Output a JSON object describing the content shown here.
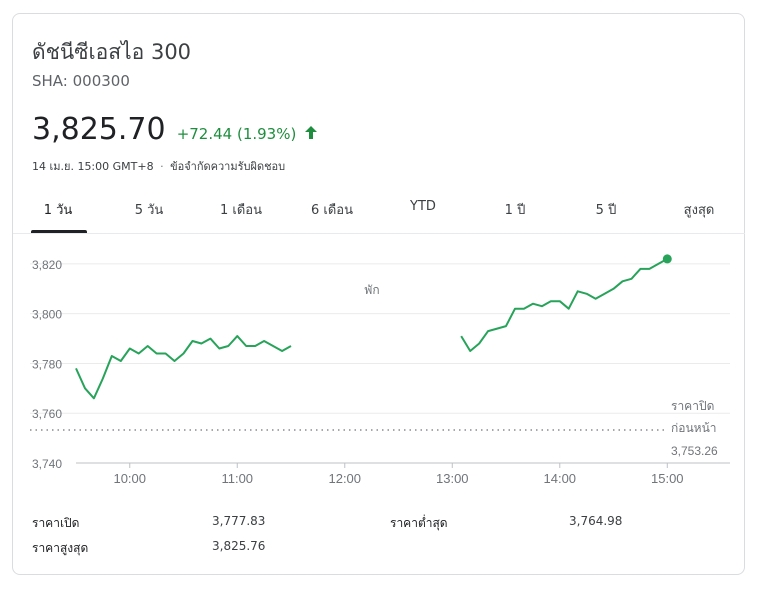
{
  "header": {
    "title": "ดัชนีซีเอสไอ 300",
    "ticker": "SHA: 000300",
    "price": "3,825.70",
    "change": "+72.44 (1.93%)",
    "arrow_icon": "arrow-up-icon",
    "timestamp": "14 เม.ย. 15:00 GMT+8",
    "separator": "·",
    "disclaimer": "ข้อจำกัดความรับผิดชอบ"
  },
  "tabs": [
    {
      "label": "1 วัน",
      "active": true
    },
    {
      "label": "5 วัน",
      "active": false
    },
    {
      "label": "1 เดือน",
      "active": false
    },
    {
      "label": "6 เดือน",
      "active": false
    },
    {
      "label": "YTD",
      "active": false
    },
    {
      "label": "1 ปี",
      "active": false
    },
    {
      "label": "5 ปี",
      "active": false
    },
    {
      "label": "สูงสุด",
      "active": false
    }
  ],
  "colors": {
    "accent_green": "#1e8e3e",
    "line_green": "#27a35a",
    "grid": "#ebebeb",
    "text": "#202124"
  },
  "chart_data": {
    "type": "line",
    "ylim": [
      3740,
      3830
    ],
    "yticks": [
      "3,820",
      "3,800",
      "3,780",
      "3,760",
      "3,740"
    ],
    "ytick_values": [
      3820,
      3800,
      3780,
      3760,
      3740
    ],
    "xticks": [
      "10:00",
      "11:00",
      "12:00",
      "13:00",
      "14:00",
      "15:00"
    ],
    "xtick_values": [
      "10:00",
      "11:00",
      "12:00",
      "13:00",
      "14:00",
      "15:00"
    ],
    "x_range": [
      "09:30",
      "15:35"
    ],
    "break_label": "พัก",
    "previous_close": 3753.26,
    "previous_close_label_1": "ราคาปิด",
    "previous_close_label_2": "ก่อนหน้า",
    "previous_close_text": "3,753.26",
    "grid": true,
    "series": [
      {
        "x": [
          "09:30",
          "09:35",
          "09:40",
          "09:45",
          "09:50",
          "09:55",
          "10:00",
          "10:05",
          "10:10",
          "10:15",
          "10:20",
          "10:25",
          "10:30",
          "10:35",
          "10:40",
          "10:45",
          "10:50",
          "10:55",
          "11:00",
          "11:05",
          "11:10",
          "11:15",
          "11:20",
          "11:25",
          "11:30"
        ],
        "y": [
          3778,
          3770,
          3766,
          3774,
          3783,
          3781,
          3786,
          3784,
          3787,
          3784,
          3784,
          3781,
          3784,
          3789,
          3788,
          3790,
          3786,
          3787,
          3791,
          3787,
          3787,
          3789,
          3787,
          3785,
          3787
        ]
      },
      {
        "x": [
          "13:05",
          "13:10",
          "13:15",
          "13:20",
          "13:25",
          "13:30",
          "13:35",
          "13:40",
          "13:45",
          "13:50",
          "13:55",
          "14:00",
          "14:05",
          "14:10",
          "14:15",
          "14:20",
          "14:25",
          "14:30",
          "14:35",
          "14:40",
          "14:45",
          "14:50",
          "14:55",
          "15:00"
        ],
        "y": [
          3791,
          3785,
          3788,
          3793,
          3794,
          3795,
          3802,
          3802,
          3804,
          3803,
          3805,
          3805,
          3802,
          3809,
          3808,
          3806,
          3808,
          3810,
          3813,
          3814,
          3818,
          3818,
          3820,
          3822
        ]
      }
    ],
    "last_point": {
      "x": "15:00",
      "y": 3822
    }
  },
  "stats": [
    {
      "label": "ราคาเปิด",
      "value": "3,777.83"
    },
    {
      "label": "ราคาต่ำสุด",
      "value": "3,764.98"
    },
    {
      "label": "ราคาสูงสุด",
      "value": "3,825.76"
    }
  ]
}
